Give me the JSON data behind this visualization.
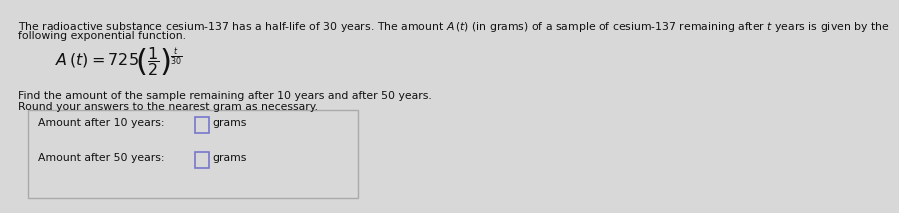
{
  "bg_color": "#d8d8d8",
  "text_color": "#111111",
  "line1": "The radioactive substance cesium-137 has a half-life of 30 years. The amount $A\\,(t)$ (in grams) of a sample of cesium-137 remaining after $t$ years is given by the",
  "line2": "following exponential function.",
  "formula": "$A\\,(t) = 725\\!\\left(\\dfrac{1}{2}\\right)^{\\!\\frac{t}{30}}$",
  "find1": "Find the amount of the sample remaining after 10 years and after 50 years.",
  "find2": "Round your answers to the nearest gram as necessary.",
  "label_10": "Amount after 10 years:",
  "label_50": "Amount after 50 years:",
  "unit": "grams",
  "font_size_body": 7.8,
  "font_size_formula": 11.5,
  "box_color": "#aaaaaa",
  "input_border_color": "#7777cc",
  "white_box": "#d8d8d8"
}
